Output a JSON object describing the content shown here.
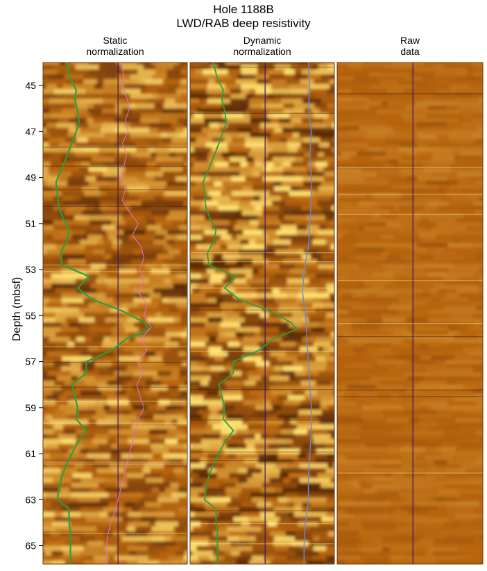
{
  "chart_data": {
    "type": "image-log",
    "title_lines": [
      "Hole 1188B",
      "LWD/RAB deep resistivity"
    ],
    "ylabel": "Depth (mbsf)",
    "ylim": [
      44.0,
      65.8
    ],
    "yticks": [
      45,
      47,
      49,
      51,
      53,
      55,
      57,
      59,
      61,
      63,
      65
    ],
    "panels": [
      {
        "name": "static",
        "title_lines": [
          "Static",
          "normalization"
        ]
      },
      {
        "name": "dynamic",
        "title_lines": [
          "Dynamic",
          "normalization"
        ]
      },
      {
        "name": "raw",
        "title_lines": [
          "Raw",
          "data"
        ]
      }
    ],
    "curve_green": {
      "depth": [
        44.0,
        44.7,
        45.2,
        45.6,
        46.1,
        46.6,
        47.0,
        47.5,
        48.0,
        48.6,
        49.2,
        49.8,
        50.3,
        50.8,
        51.3,
        51.8,
        52.3,
        52.8,
        53.3,
        53.8,
        54.3,
        54.8,
        55.3,
        55.6,
        56.0,
        56.5,
        57.0,
        57.5,
        58.0,
        58.5,
        59.0,
        59.5,
        60.0,
        60.5,
        61.0,
        61.5,
        62.0,
        62.5,
        63.0,
        63.4,
        63.9,
        64.4,
        65.0,
        65.8
      ],
      "value": [
        0.16,
        0.19,
        0.23,
        0.22,
        0.24,
        0.25,
        0.23,
        0.2,
        0.17,
        0.13,
        0.09,
        0.1,
        0.11,
        0.14,
        0.18,
        0.16,
        0.12,
        0.13,
        0.32,
        0.24,
        0.34,
        0.55,
        0.7,
        0.74,
        0.58,
        0.48,
        0.3,
        0.3,
        0.2,
        0.22,
        0.24,
        0.23,
        0.3,
        0.24,
        0.2,
        0.16,
        0.13,
        0.11,
        0.1,
        0.18,
        0.18,
        0.19,
        0.19,
        0.19
      ]
    },
    "curve_blue": {
      "depth": [
        44.0,
        45.0,
        46.0,
        47.0,
        48.0,
        49.0,
        50.0,
        51.0,
        52.0,
        53.0,
        54.0,
        55.0,
        56.0,
        57.0,
        58.0,
        59.0,
        60.0,
        61.0,
        62.0,
        63.0,
        64.0,
        65.0,
        65.8
      ],
      "value": [
        0.82,
        0.83,
        0.82,
        0.84,
        0.83,
        0.84,
        0.84,
        0.83,
        0.82,
        0.79,
        0.78,
        0.8,
        0.81,
        0.82,
        0.83,
        0.84,
        0.84,
        0.83,
        0.82,
        0.82,
        0.8,
        0.79,
        0.79
      ]
    },
    "curve_pink": {
      "depth": [
        44.0,
        44.5,
        45.0,
        45.5,
        46.0,
        46.5,
        47.0,
        47.5,
        48.0,
        48.5,
        49.0,
        49.5,
        50.0,
        50.5,
        51.0,
        51.5,
        52.0,
        52.5,
        53.0,
        53.5,
        54.0,
        54.5,
        55.0,
        55.5,
        56.0,
        56.5,
        57.0,
        57.5,
        58.0,
        58.5,
        59.0,
        59.5,
        60.0,
        60.5,
        61.0,
        61.5,
        62.0,
        62.5,
        63.0,
        63.5,
        64.0,
        64.5,
        65.0,
        65.5,
        65.8
      ],
      "value": [
        0.54,
        0.56,
        0.55,
        0.58,
        0.6,
        0.57,
        0.59,
        0.55,
        0.58,
        0.56,
        0.54,
        0.57,
        0.55,
        0.6,
        0.66,
        0.62,
        0.68,
        0.7,
        0.67,
        0.7,
        0.66,
        0.72,
        0.7,
        0.75,
        0.68,
        0.72,
        0.66,
        0.69,
        0.65,
        0.67,
        0.7,
        0.66,
        0.64,
        0.62,
        0.6,
        0.58,
        0.56,
        0.54,
        0.52,
        0.5,
        0.47,
        0.45,
        0.44,
        0.44,
        0.44
      ]
    }
  },
  "colors": {
    "image_dark": "#5a2a06",
    "image_mid": "#b8650f",
    "image_light": "#ffe070",
    "raw_base": "#c9861a",
    "green_curve": "#2aa03a",
    "blue_curve": "#6c88d8",
    "pink_curve": "#e070c8",
    "center_line": "#3a1660",
    "separator": "#ffffff"
  }
}
